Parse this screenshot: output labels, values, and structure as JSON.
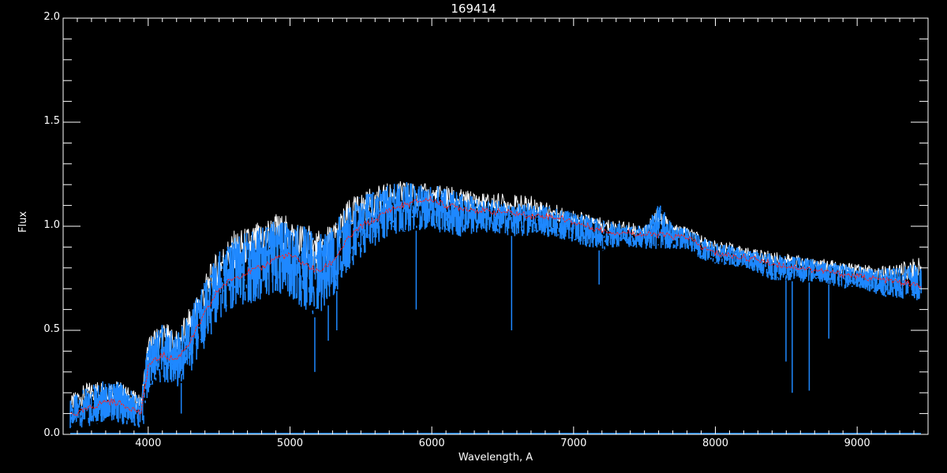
{
  "chart_data": {
    "type": "line",
    "title": "169414",
    "xlabel": "Wavelength, A",
    "ylabel": "Flux",
    "xlim": [
      3400,
      9500
    ],
    "ylim": [
      0,
      2.0
    ],
    "xticks": [
      4000,
      5000,
      6000,
      7000,
      8000,
      9000
    ],
    "xtick_labels": [
      "4000",
      "5000",
      "6000",
      "7000",
      "8000",
      "9000"
    ],
    "yticks": [
      0.0,
      0.5,
      1.0,
      1.5,
      2.0
    ],
    "ytick_labels": [
      "0.0",
      "0.5",
      "1.0",
      "1.5",
      "2.0"
    ],
    "grid": false,
    "background": "#000000",
    "axis_color": "#ffffff",
    "x": [
      3450,
      3500,
      3600,
      3700,
      3800,
      3900,
      3950,
      4000,
      4100,
      4200,
      4300,
      4400,
      4500,
      4600,
      4700,
      4800,
      4900,
      5000,
      5100,
      5200,
      5300,
      5400,
      5500,
      5600,
      5700,
      5800,
      5900,
      6000,
      6100,
      6200,
      6300,
      6400,
      6500,
      6600,
      6700,
      6800,
      6900,
      7000,
      7100,
      7200,
      7300,
      7400,
      7500,
      7600,
      7700,
      7800,
      7900,
      8000,
      8100,
      8200,
      8300,
      8400,
      8500,
      8600,
      8700,
      8800,
      8900,
      9000,
      9100,
      9200,
      9300,
      9400,
      9450
    ],
    "series": [
      {
        "role": "observed spectrum (envelope)",
        "color": "#1e88ff",
        "upper": [
          0.17,
          0.2,
          0.24,
          0.26,
          0.25,
          0.2,
          0.18,
          0.45,
          0.53,
          0.48,
          0.6,
          0.75,
          0.88,
          0.95,
          0.97,
          1.0,
          1.03,
          1.02,
          1.0,
          0.96,
          1.0,
          1.1,
          1.15,
          1.17,
          1.2,
          1.22,
          1.2,
          1.2,
          1.19,
          1.16,
          1.14,
          1.13,
          1.12,
          1.11,
          1.11,
          1.1,
          1.08,
          1.07,
          1.05,
          1.03,
          1.02,
          1.01,
          1.0,
          1.12,
          1.0,
          0.99,
          0.95,
          0.92,
          0.91,
          0.89,
          0.88,
          0.87,
          0.86,
          0.85,
          0.84,
          0.83,
          0.82,
          0.81,
          0.8,
          0.8,
          0.8,
          0.82,
          0.82
        ],
        "lower": [
          0.03,
          0.03,
          0.04,
          0.06,
          0.05,
          0.04,
          0.03,
          0.2,
          0.25,
          0.22,
          0.3,
          0.42,
          0.55,
          0.6,
          0.62,
          0.65,
          0.68,
          0.66,
          0.6,
          0.55,
          0.65,
          0.78,
          0.85,
          0.9,
          0.95,
          0.97,
          0.98,
          0.98,
          0.96,
          0.95,
          0.96,
          0.97,
          0.96,
          0.95,
          0.95,
          0.95,
          0.94,
          0.92,
          0.9,
          0.88,
          0.9,
          0.9,
          0.89,
          0.88,
          0.89,
          0.89,
          0.84,
          0.82,
          0.81,
          0.8,
          0.77,
          0.74,
          0.74,
          0.73,
          0.73,
          0.72,
          0.7,
          0.7,
          0.68,
          0.66,
          0.65,
          0.64,
          0.64
        ],
        "absorption_lines": [
          {
            "wavelength": 3934,
            "flux": 0.05
          },
          {
            "wavelength": 3968,
            "flux": 0.05
          },
          {
            "wavelength": 4233,
            "flux": 0.1
          },
          {
            "wavelength": 5175,
            "flux": 0.3
          },
          {
            "wavelength": 5270,
            "flux": 0.45
          },
          {
            "wavelength": 5330,
            "flux": 0.5
          },
          {
            "wavelength": 5890,
            "flux": 0.6
          },
          {
            "wavelength": 6563,
            "flux": 0.5
          },
          {
            "wavelength": 7180,
            "flux": 0.72
          },
          {
            "wavelength": 8498,
            "flux": 0.35
          },
          {
            "wavelength": 8542,
            "flux": 0.2
          },
          {
            "wavelength": 8662,
            "flux": 0.21
          },
          {
            "wavelength": 8800,
            "flux": 0.46
          }
        ]
      },
      {
        "role": "reference spectrum (upper envelope)",
        "color": "#ffffff",
        "upper": [
          0.18,
          0.22,
          0.26,
          0.27,
          0.26,
          0.21,
          0.19,
          0.47,
          0.55,
          0.5,
          0.62,
          0.77,
          0.9,
          0.98,
          1.0,
          1.03,
          1.07,
          1.05,
          1.02,
          0.98,
          1.02,
          1.12,
          1.17,
          1.19,
          1.21,
          1.22,
          1.21,
          1.2,
          1.2,
          1.18,
          1.17,
          1.16,
          1.16,
          1.15,
          1.15,
          1.12,
          1.1,
          1.08,
          1.06,
          1.04,
          1.03,
          1.02,
          1.01,
          1.1,
          1.01,
          1.0,
          0.96,
          0.93,
          0.92,
          0.9,
          0.89,
          0.88,
          0.87,
          0.86,
          0.85,
          0.84,
          0.83,
          0.82,
          0.81,
          0.81,
          0.82,
          0.85,
          0.85
        ]
      },
      {
        "role": "smoothed spectrum",
        "color": "#ff2020",
        "values": [
          0.1,
          0.1,
          0.13,
          0.16,
          0.15,
          0.12,
          0.1,
          0.33,
          0.38,
          0.36,
          0.45,
          0.58,
          0.7,
          0.75,
          0.78,
          0.8,
          0.85,
          0.86,
          0.82,
          0.78,
          0.83,
          0.93,
          1.0,
          1.03,
          1.08,
          1.1,
          1.12,
          1.13,
          1.1,
          1.09,
          1.08,
          1.07,
          1.07,
          1.06,
          1.05,
          1.05,
          1.04,
          1.02,
          1.0,
          0.98,
          0.97,
          0.97,
          0.96,
          0.96,
          0.95,
          0.95,
          0.9,
          0.87,
          0.86,
          0.85,
          0.84,
          0.82,
          0.81,
          0.8,
          0.79,
          0.78,
          0.77,
          0.76,
          0.75,
          0.74,
          0.73,
          0.72,
          0.71
        ]
      },
      {
        "role": "error spectrum",
        "color": "#1e88ff",
        "x_range": [
          3450,
          9450
        ],
        "value": 0.0
      }
    ]
  }
}
